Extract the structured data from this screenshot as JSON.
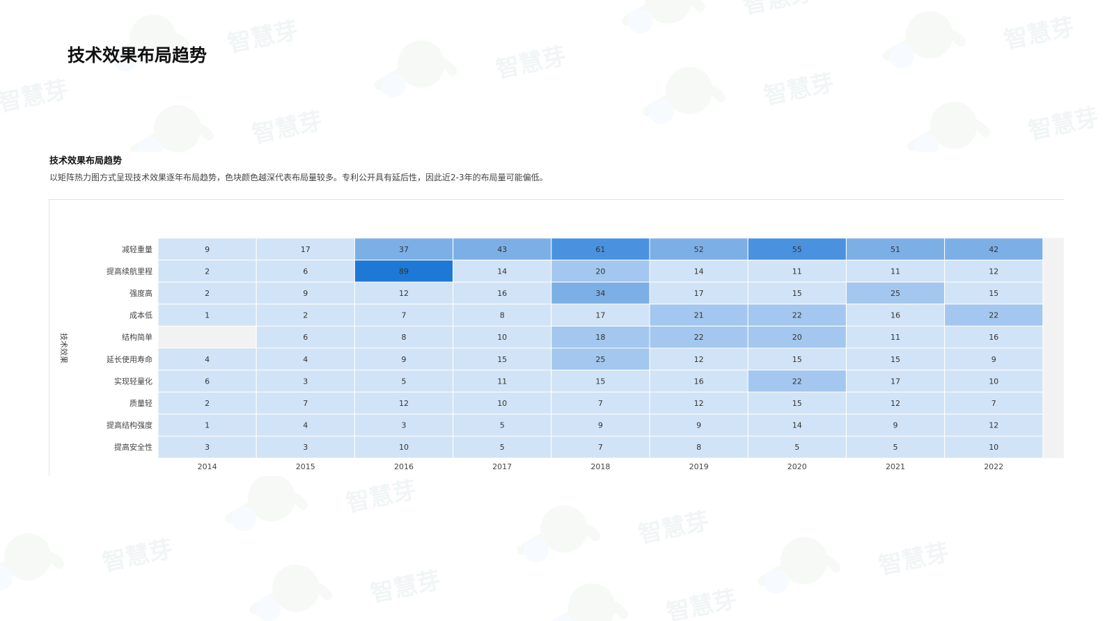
{
  "page": {
    "title": "技术效果布局趋势",
    "watermark_text": "智慧芽"
  },
  "section": {
    "title": "技术效果布局趋势",
    "description": "以矩阵热力图方式呈现技术效果逐年布局趋势，色块颜色越深代表布局量较多。专利公开具有延后性，因此近2-3年的布局量可能偏低。"
  },
  "chart_data": {
    "type": "heatmap",
    "title": "",
    "xlabel": "",
    "ylabel": "技术效果",
    "x": [
      "2014",
      "2015",
      "2016",
      "2017",
      "2018",
      "2019",
      "2020",
      "2021",
      "2022"
    ],
    "y": [
      "减轻重量",
      "提高续航里程",
      "强度高",
      "成本低",
      "结构简单",
      "延长使用寿命",
      "实现轻量化",
      "质量轻",
      "提高结构强度",
      "提高安全性"
    ],
    "values": [
      [
        9,
        17,
        37,
        43,
        61,
        52,
        55,
        51,
        42
      ],
      [
        2,
        6,
        89,
        14,
        20,
        14,
        11,
        11,
        12
      ],
      [
        2,
        9,
        12,
        16,
        34,
        17,
        15,
        25,
        15
      ],
      [
        1,
        2,
        7,
        8,
        17,
        21,
        22,
        16,
        22
      ],
      [
        null,
        6,
        8,
        10,
        18,
        22,
        20,
        11,
        16
      ],
      [
        4,
        4,
        9,
        15,
        25,
        12,
        15,
        15,
        9
      ],
      [
        6,
        3,
        5,
        11,
        15,
        16,
        22,
        17,
        10
      ],
      [
        2,
        7,
        12,
        10,
        7,
        12,
        15,
        12,
        7
      ],
      [
        1,
        4,
        3,
        5,
        9,
        9,
        14,
        9,
        12
      ],
      [
        3,
        3,
        10,
        5,
        7,
        8,
        5,
        5,
        10
      ]
    ],
    "colors": {
      "empty": "#f2f2f2",
      "level_1": "#d1e3f6",
      "level_2": "#a3c7ee",
      "level_3": "#7cafe6",
      "level_4": "#4a92e0",
      "level_5": "#1e78d6",
      "grid_line": "#ffffff"
    }
  }
}
